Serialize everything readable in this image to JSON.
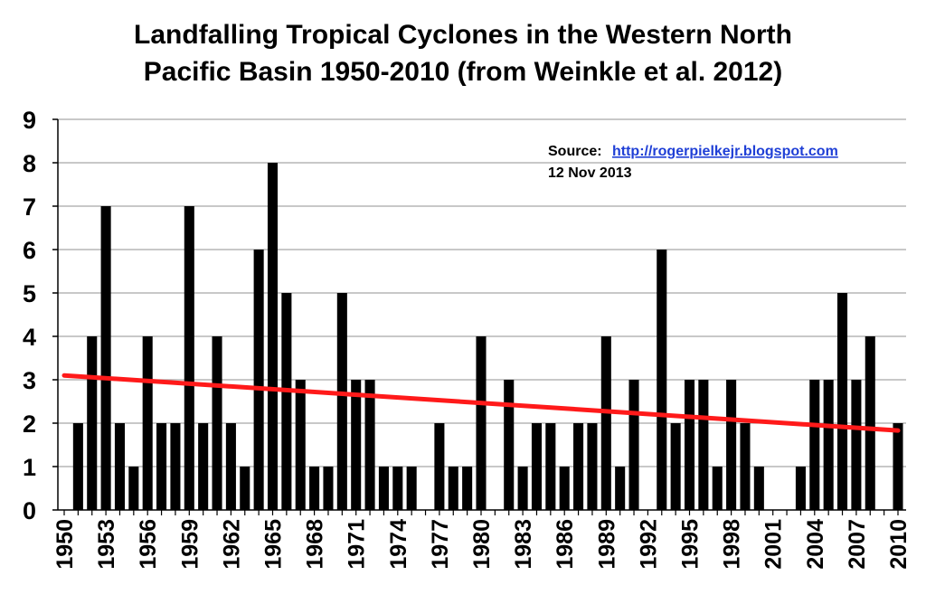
{
  "chart_data": {
    "type": "bar",
    "title": "Landfalling Tropical Cyclones in the Western North Pacific Basin 1950-2010 (from Weinkle et al. 2012)",
    "title_lines": [
      "Landfalling Tropical Cyclones in the Western North",
      "Pacific Basin 1950-2010 (from Weinkle et al. 2012)"
    ],
    "xlabel": "",
    "ylabel": "",
    "ylim": [
      0,
      9
    ],
    "yticks": [
      "0",
      "1",
      "2",
      "3",
      "4",
      "5",
      "6",
      "7",
      "8",
      "9"
    ],
    "xticks": [
      "1950",
      "1953",
      "1956",
      "1959",
      "1962",
      "1965",
      "1968",
      "1971",
      "1974",
      "1977",
      "1980",
      "1983",
      "1986",
      "1989",
      "1992",
      "1995",
      "1998",
      "2001",
      "2004",
      "2007",
      "2010"
    ],
    "grid": "horizontal",
    "bar_color": "#000000",
    "trend_color": "#ff1a1a",
    "categories": [
      1950,
      1951,
      1952,
      1953,
      1954,
      1955,
      1956,
      1957,
      1958,
      1959,
      1960,
      1961,
      1962,
      1963,
      1964,
      1965,
      1966,
      1967,
      1968,
      1969,
      1970,
      1971,
      1972,
      1973,
      1974,
      1975,
      1976,
      1977,
      1978,
      1979,
      1980,
      1981,
      1982,
      1983,
      1984,
      1985,
      1986,
      1987,
      1988,
      1989,
      1990,
      1991,
      1992,
      1993,
      1994,
      1995,
      1996,
      1997,
      1998,
      1999,
      2000,
      2001,
      2002,
      2003,
      2004,
      2005,
      2006,
      2007,
      2008,
      2009,
      2010
    ],
    "values": [
      0,
      2,
      4,
      7,
      2,
      1,
      4,
      2,
      2,
      7,
      2,
      4,
      2,
      1,
      6,
      8,
      5,
      3,
      1,
      1,
      5,
      3,
      3,
      1,
      1,
      1,
      0,
      2,
      1,
      1,
      4,
      0,
      3,
      1,
      2,
      2,
      1,
      2,
      2,
      4,
      1,
      3,
      0,
      6,
      2,
      3,
      3,
      1,
      3,
      2,
      1,
      0,
      0,
      1,
      3,
      3,
      5,
      3,
      4,
      0,
      2
    ],
    "trend": {
      "x": [
        1950,
        2010
      ],
      "y": [
        3.1,
        1.83
      ]
    }
  },
  "source": {
    "label": "Source:",
    "link": "http://rogerpielkejr.blogspot.com",
    "date": "12 Nov 2013"
  }
}
